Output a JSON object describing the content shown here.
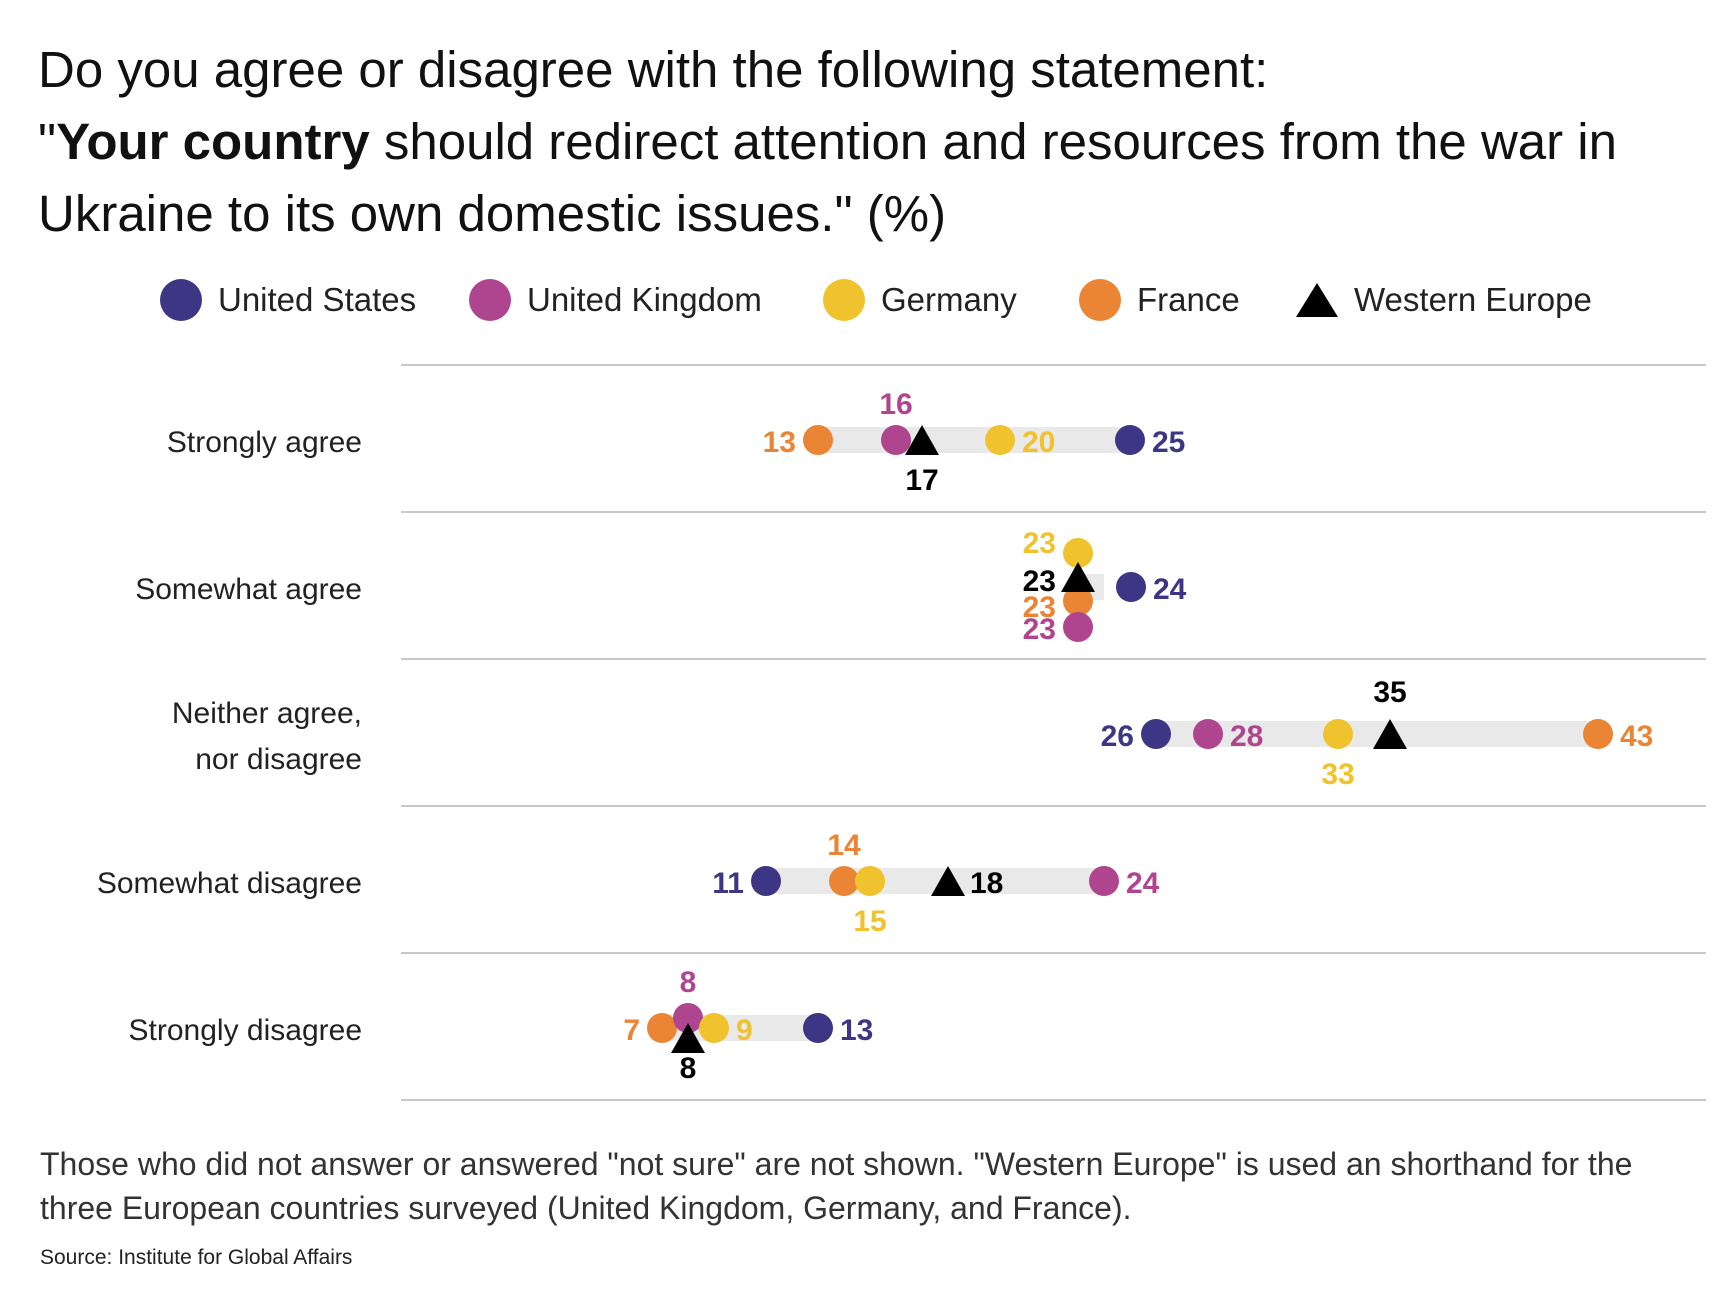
{
  "title": {
    "line1": "Do you agree or disagree with the following statement:",
    "quote_open": "\"",
    "bold": "Your country",
    "rest": " should redirect attention and resources from the war in Ukraine to its own domestic issues.\" (%)"
  },
  "footnote": "Those who did not answer or answered \"not sure\" are not shown. \"Western Europe\" is used an shorthand for the three European countries surveyed (United Kingdom, Germany, and France).",
  "source": "Source: Institute for Global Affairs",
  "colors": {
    "United States": "#3d3685",
    "United Kingdom": "#b0458f",
    "Germany": "#f0c22d",
    "France": "#ea8535",
    "Western Europe": "#000000",
    "range_band": "#e9e9e9",
    "gridline": "#b5b5b5"
  },
  "chart_data": {
    "type": "dot-plot",
    "title": "Do you agree or disagree with the following statement: \"Your country should redirect attention and resources from the war in Ukraine to its own domestic issues.\" (%)",
    "categories": [
      "Strongly agree",
      "Somewhat agree",
      "Neither agree, nor disagree",
      "Somewhat disagree",
      "Strongly disagree"
    ],
    "category_lines": [
      [
        "Strongly agree"
      ],
      [
        "Somewhat agree"
      ],
      [
        "Neither agree,",
        "nor disagree"
      ],
      [
        "Somewhat disagree"
      ],
      [
        "Strongly disagree"
      ]
    ],
    "series": [
      {
        "name": "United States",
        "marker": "circle",
        "values": [
          25,
          24,
          26,
          11,
          13
        ]
      },
      {
        "name": "United Kingdom",
        "marker": "circle",
        "values": [
          16,
          23,
          28,
          24,
          8
        ]
      },
      {
        "name": "Germany",
        "marker": "circle",
        "values": [
          20,
          23,
          33,
          15,
          9
        ]
      },
      {
        "name": "France",
        "marker": "circle",
        "values": [
          13,
          23,
          43,
          14,
          7
        ]
      },
      {
        "name": "Western Europe",
        "marker": "triangle",
        "values": [
          17,
          23,
          35,
          18,
          8
        ]
      }
    ],
    "unit": "%",
    "legend_position": "top",
    "grid": "horizontal separators"
  }
}
